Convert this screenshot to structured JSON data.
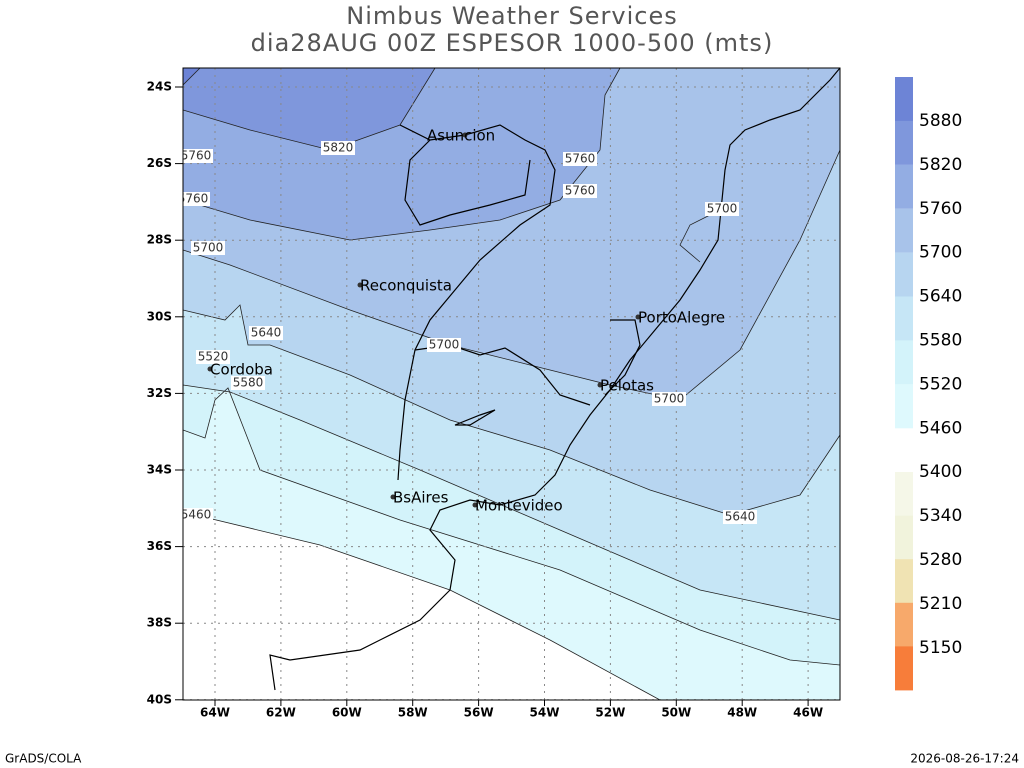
{
  "header": {
    "title": "Nimbus Weather Services",
    "subtitle": "dia28AUG 00Z ESPESOR 1000-500 (mts)"
  },
  "map": {
    "lat_labels": [
      "24S",
      "26S",
      "28S",
      "30S",
      "32S",
      "34S",
      "36S",
      "38S",
      "40S"
    ],
    "lon_labels": [
      "64W",
      "62W",
      "60W",
      "58W",
      "56W",
      "54W",
      "52W",
      "50W",
      "48W",
      "46W"
    ],
    "cities": [
      "Asuncion",
      "Reconquista",
      "PortoAlegre",
      "Cordoba",
      "Pelotas",
      "BsAires",
      "Montevideo"
    ],
    "contour_labels": [
      "5820",
      "5760",
      "5760",
      "5760",
      "5760",
      "5700",
      "5700",
      "5700",
      "5700",
      "5640",
      "5640",
      "5520",
      "5580",
      "5460"
    ]
  },
  "colorbar": {
    "upper": [
      "5880",
      "5820",
      "5760",
      "5700",
      "5640",
      "5580",
      "5520",
      "5460"
    ],
    "lower": [
      "5400",
      "5340",
      "5280",
      "5210",
      "5150"
    ]
  },
  "footer": {
    "left": "GrADS/COLA",
    "right": "2026-08-26-17:24"
  }
}
